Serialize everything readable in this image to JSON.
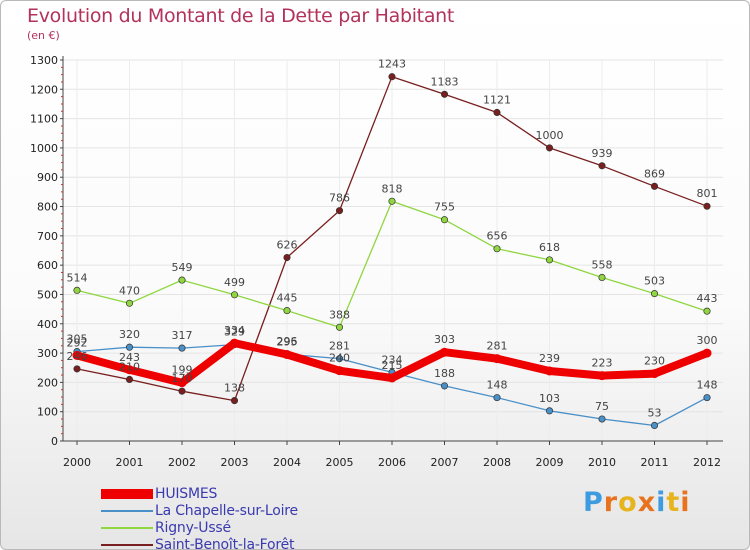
{
  "chart_data": {
    "type": "line",
    "title": "Evolution du Montant de la Dette par Habitant",
    "subtitle": "(en €)",
    "xlabel": "",
    "ylabel": "",
    "categories": [
      "2000",
      "2001",
      "2002",
      "2003",
      "2004",
      "2005",
      "2006",
      "2007",
      "2008",
      "2009",
      "2010",
      "2011",
      "2012"
    ],
    "ylim": [
      0,
      1300
    ],
    "yticks": [
      0,
      100,
      200,
      300,
      400,
      500,
      600,
      700,
      800,
      900,
      1000,
      1100,
      1200,
      1300
    ],
    "grid": true,
    "legend_position": "bottom-left",
    "series": [
      {
        "name": "HUISMES",
        "color": "#ee0000",
        "values": [
          292,
          243,
          199,
          334,
          295,
          240,
          215,
          303,
          281,
          239,
          223,
          230,
          300
        ]
      },
      {
        "name": "La Chapelle-sur-Loire",
        "color": "#4a90c8",
        "values": [
          305,
          320,
          317,
          329,
          296,
          281,
          234,
          188,
          148,
          103,
          75,
          53,
          148
        ]
      },
      {
        "name": "Rigny-Ussé",
        "color": "#8fd640",
        "values": [
          514,
          470,
          549,
          499,
          445,
          388,
          818,
          755,
          656,
          618,
          558,
          503,
          443
        ]
      },
      {
        "name": "Saint-Benoît-la-Forêt",
        "color": "#7a1f1f",
        "values": [
          246,
          210,
          170,
          138,
          626,
          786,
          1243,
          1183,
          1121,
          1000,
          939,
          869,
          801
        ]
      }
    ],
    "data_labels": [
      {
        "series": 0,
        "values": [
          "292",
          "243",
          "199",
          "334",
          "295",
          "240",
          "215",
          "303",
          "281",
          "239",
          "223",
          "230",
          "300"
        ]
      },
      {
        "series": 1,
        "values": [
          "305",
          "320",
          "317",
          "329",
          "296",
          "281",
          "234",
          "188",
          "148",
          "103",
          "75",
          "53",
          "148"
        ]
      },
      {
        "series": 2,
        "values": [
          "514",
          "470",
          "549",
          "499",
          "445",
          "388",
          "818",
          "755",
          "656",
          "618",
          "558",
          "503",
          "443"
        ]
      },
      {
        "series": 3,
        "values": [
          "246",
          "210",
          "170",
          "138",
          "626",
          "786",
          "1243",
          "1183",
          "1121",
          "1000",
          "939",
          "869",
          "801"
        ]
      }
    ]
  },
  "logo": {
    "text": "Proxiti",
    "colors": [
      "#3d9be0",
      "#e8731e",
      "#e8b41e",
      "#e8731e",
      "#3d9be0",
      "#e8b41e",
      "#e8731e"
    ]
  }
}
